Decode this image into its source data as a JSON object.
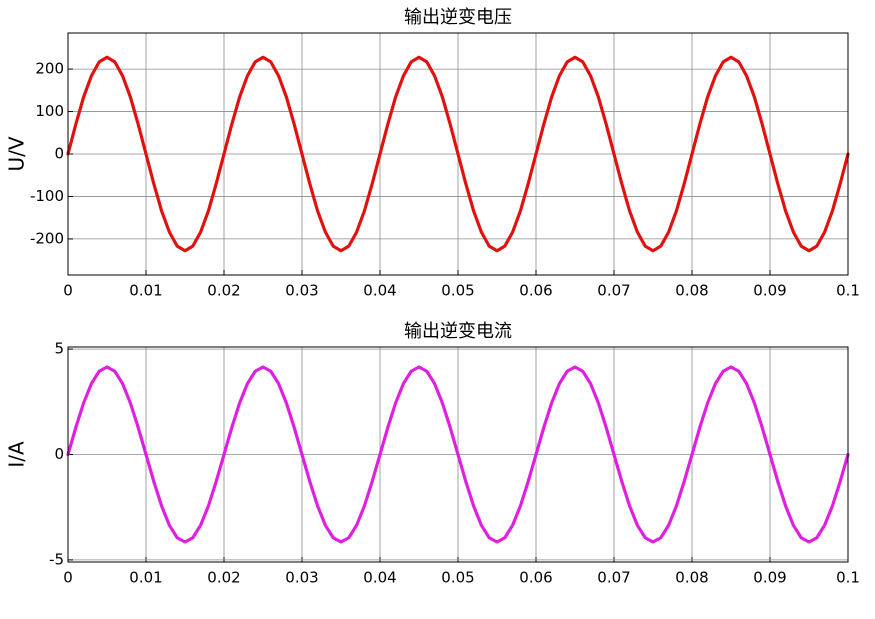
{
  "chart_data": [
    {
      "type": "line",
      "title": "输出逆变电压",
      "ylabel": "U/V",
      "color": "#e0120f",
      "x": [
        0,
        0.001,
        0.002,
        0.003,
        0.004,
        0.005,
        0.006,
        0.007,
        0.008,
        0.009,
        0.01,
        0.011,
        0.012,
        0.013,
        0.014,
        0.015,
        0.016,
        0.017,
        0.018,
        0.019,
        0.02,
        0.021,
        0.022,
        0.023,
        0.024,
        0.025,
        0.026,
        0.027,
        0.028,
        0.029,
        0.03,
        0.031,
        0.032,
        0.033,
        0.034,
        0.035,
        0.036,
        0.037,
        0.038,
        0.039,
        0.04,
        0.041,
        0.042,
        0.043,
        0.044,
        0.045,
        0.046,
        0.047,
        0.048,
        0.049,
        0.05,
        0.051,
        0.052,
        0.053,
        0.054,
        0.055,
        0.056,
        0.057,
        0.058,
        0.059,
        0.06,
        0.061,
        0.062,
        0.063,
        0.064,
        0.065,
        0.066,
        0.067,
        0.068,
        0.069,
        0.07,
        0.071,
        0.072,
        0.073,
        0.074,
        0.075,
        0.076,
        0.077,
        0.078,
        0.079,
        0.08,
        0.081,
        0.082,
        0.083,
        0.084,
        0.085,
        0.086,
        0.087,
        0.088,
        0.089,
        0.09,
        0.091,
        0.092,
        0.093,
        0.094,
        0.095,
        0.096,
        0.097,
        0.098,
        0.099,
        0.1
      ],
      "values": [
        0,
        70,
        134,
        184,
        217,
        228,
        217,
        184,
        134,
        70,
        0,
        -70,
        -134,
        -184,
        -217,
        -228,
        -217,
        -184,
        -134,
        -70,
        0,
        70,
        134,
        184,
        217,
        228,
        217,
        184,
        134,
        70,
        0,
        -70,
        -134,
        -184,
        -217,
        -228,
        -217,
        -184,
        -134,
        -70,
        0,
        70,
        134,
        184,
        217,
        228,
        217,
        184,
        134,
        70,
        0,
        -70,
        -134,
        -184,
        -217,
        -228,
        -217,
        -184,
        -134,
        -70,
        0,
        70,
        134,
        184,
        217,
        228,
        217,
        184,
        134,
        70,
        0,
        -70,
        -134,
        -184,
        -217,
        -228,
        -217,
        -184,
        -134,
        -70,
        0,
        70,
        134,
        184,
        217,
        228,
        217,
        184,
        134,
        70,
        0,
        -70,
        -134,
        -184,
        -217,
        -228,
        -217,
        -184,
        -134,
        -70,
        0
      ],
      "xlim": [
        0,
        0.1
      ],
      "xticks": [
        0,
        0.01,
        0.02,
        0.03,
        0.04,
        0.05,
        0.06,
        0.07,
        0.08,
        0.09,
        0.1
      ],
      "ylim": [
        -285,
        285
      ],
      "yticks": [
        -200,
        -100,
        0,
        100,
        200
      ],
      "grid": true
    },
    {
      "type": "line",
      "title": "输出逆变电流",
      "ylabel": "I/A",
      "color": "#e020e0",
      "x": [
        0,
        0.001,
        0.002,
        0.003,
        0.004,
        0.005,
        0.006,
        0.007,
        0.008,
        0.009,
        0.01,
        0.011,
        0.012,
        0.013,
        0.014,
        0.015,
        0.016,
        0.017,
        0.018,
        0.019,
        0.02,
        0.021,
        0.022,
        0.023,
        0.024,
        0.025,
        0.026,
        0.027,
        0.028,
        0.029,
        0.03,
        0.031,
        0.032,
        0.033,
        0.034,
        0.035,
        0.036,
        0.037,
        0.038,
        0.039,
        0.04,
        0.041,
        0.042,
        0.043,
        0.044,
        0.045,
        0.046,
        0.047,
        0.048,
        0.049,
        0.05,
        0.051,
        0.052,
        0.053,
        0.054,
        0.055,
        0.056,
        0.057,
        0.058,
        0.059,
        0.06,
        0.061,
        0.062,
        0.063,
        0.064,
        0.065,
        0.066,
        0.067,
        0.068,
        0.069,
        0.07,
        0.071,
        0.072,
        0.073,
        0.074,
        0.075,
        0.076,
        0.077,
        0.078,
        0.079,
        0.08,
        0.081,
        0.082,
        0.083,
        0.084,
        0.085,
        0.086,
        0.087,
        0.088,
        0.089,
        0.09,
        0.091,
        0.092,
        0.093,
        0.094,
        0.095,
        0.096,
        0.097,
        0.098,
        0.099,
        0.1
      ],
      "values": [
        0,
        1.28,
        2.44,
        3.36,
        3.95,
        4.15,
        3.95,
        3.36,
        2.44,
        1.28,
        0,
        -1.28,
        -2.44,
        -3.36,
        -3.95,
        -4.15,
        -3.95,
        -3.36,
        -2.44,
        -1.28,
        0,
        1.28,
        2.44,
        3.36,
        3.95,
        4.15,
        3.95,
        3.36,
        2.44,
        1.28,
        0,
        -1.28,
        -2.44,
        -3.36,
        -3.95,
        -4.15,
        -3.95,
        -3.36,
        -2.44,
        -1.28,
        0,
        1.28,
        2.44,
        3.36,
        3.95,
        4.15,
        3.95,
        3.36,
        2.44,
        1.28,
        0,
        -1.28,
        -2.44,
        -3.36,
        -3.95,
        -4.15,
        -3.95,
        -3.36,
        -2.44,
        -1.28,
        0,
        1.28,
        2.44,
        3.36,
        3.95,
        4.15,
        3.95,
        3.36,
        2.44,
        1.28,
        0,
        -1.28,
        -2.44,
        -3.36,
        -3.95,
        -4.15,
        -3.95,
        -3.36,
        -2.44,
        -1.28,
        0,
        1.28,
        2.44,
        3.36,
        3.95,
        4.15,
        3.95,
        3.36,
        2.44,
        1.28,
        0,
        -1.28,
        -2.44,
        -3.36,
        -3.95,
        -4.15,
        -3.95,
        -3.36,
        -2.44,
        -1.28,
        0
      ],
      "xlim": [
        0,
        0.1
      ],
      "xticks": [
        0,
        0.01,
        0.02,
        0.03,
        0.04,
        0.05,
        0.06,
        0.07,
        0.08,
        0.09,
        0.1
      ],
      "ylim": [
        -5.1,
        5.1
      ],
      "yticks": [
        -5,
        0,
        5
      ],
      "grid": true
    }
  ]
}
